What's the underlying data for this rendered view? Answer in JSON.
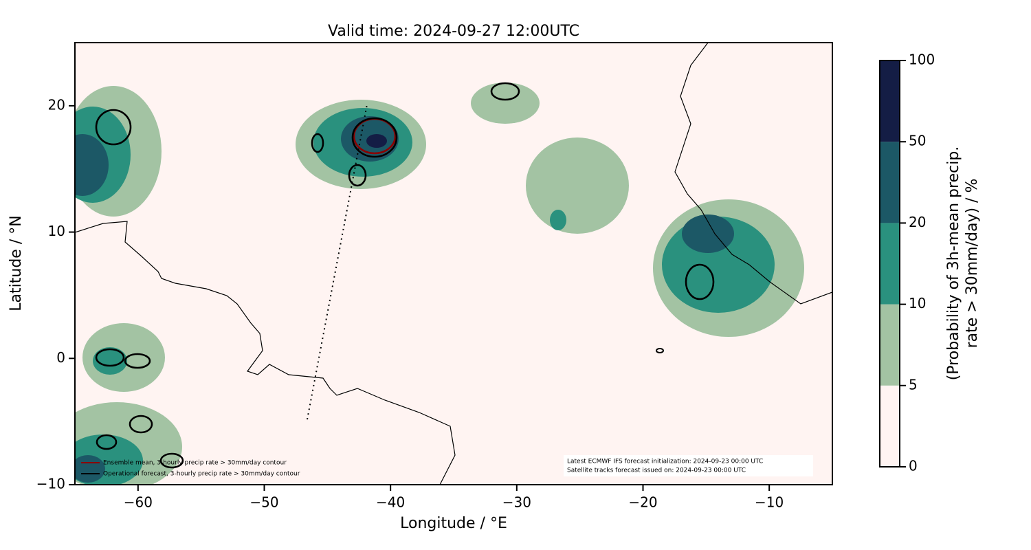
{
  "chart_data": {
    "type": "map",
    "title": "Valid time: 2024-09-27 12:00UTC",
    "x_label": "Longitude / °E",
    "y_label": "Latitude / °N",
    "xlim": [
      -65,
      -5
    ],
    "ylim": [
      -10,
      25
    ],
    "xticks": [
      {
        "value": -60,
        "label": "−60"
      },
      {
        "value": -50,
        "label": "−50"
      },
      {
        "value": -40,
        "label": "−40"
      },
      {
        "value": -30,
        "label": "−30"
      },
      {
        "value": -20,
        "label": "−20"
      },
      {
        "value": -10,
        "label": "−10"
      }
    ],
    "yticks": [
      {
        "value": -10,
        "label": "−10"
      },
      0,
      10,
      20
    ],
    "colorbar": {
      "label": [
        "(Probability of 3h-mean precip.",
        "rate > 30mm/day) / %"
      ],
      "levels": [
        0,
        5,
        10,
        20,
        50,
        100
      ],
      "colors": [
        "#fff4f2",
        "#a3c3a3",
        "#2a917e",
        "#1c5866",
        "#141d45"
      ]
    },
    "legend": [
      {
        "name": "Ensemble mean, 3-hourly precip rate > 30mm/day contour",
        "color": "#8b0000"
      },
      {
        "name": "Operational forecast, 3-hourly precip rate > 30mm/day contour",
        "color": "#000000"
      }
    ],
    "annotation": [
      "Latest ECMWF IFS forecast initialization: 2024-09-23 00:00 UTC",
      "Satellite tracks forecast issued on: 2024-09-23 00:00 UTC"
    ]
  }
}
